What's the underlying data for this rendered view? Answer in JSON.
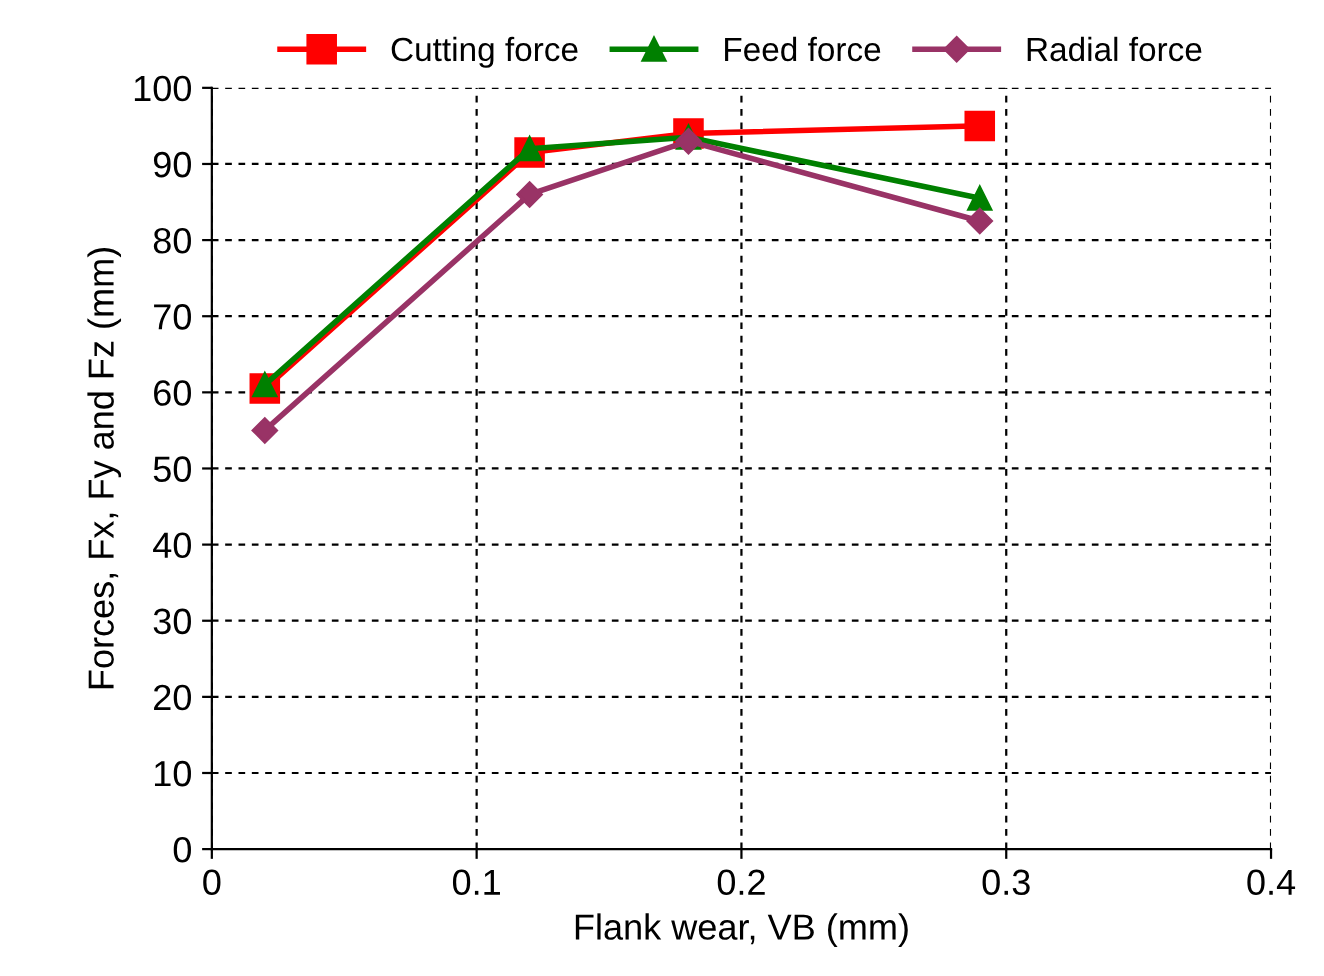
{
  "chart_data": {
    "type": "line",
    "xlabel": "Flank wear, VB (mm)",
    "ylabel": "Forces, Fx, Fy and Fz (mm)",
    "xlim": [
      0,
      0.4
    ],
    "xticks": [
      0,
      0.1,
      0.2,
      0.3,
      0.4
    ],
    "ylim": [
      0,
      100
    ],
    "yticks": [
      0,
      10,
      20,
      30,
      40,
      50,
      60,
      70,
      80,
      90,
      100
    ],
    "grid": true,
    "legend": "top",
    "line_style": "solid",
    "series": [
      {
        "name": "Cutting force",
        "color": "#ff0000",
        "marker": "square",
        "x": [
          0.02,
          0.12,
          0.18,
          0.29
        ],
        "values": [
          60.5,
          91.5,
          94,
          95
        ]
      },
      {
        "name": "Feed force",
        "color": "#008000",
        "marker": "triangle",
        "x": [
          0.02,
          0.12,
          0.18,
          0.29
        ],
        "values": [
          61,
          92,
          93.5,
          85.5
        ]
      },
      {
        "name": "Radial force",
        "color": "#993366",
        "marker": "diamond",
        "x": [
          0.02,
          0.12,
          0.18,
          0.29
        ],
        "values": [
          55,
          86,
          93,
          82.5
        ]
      }
    ]
  }
}
